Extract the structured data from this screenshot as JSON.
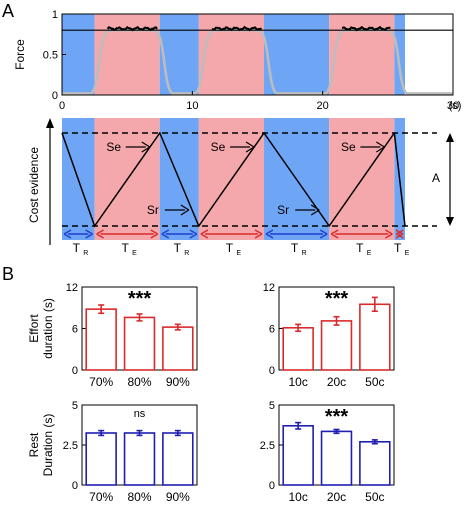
{
  "panel_labels": [
    "A",
    "B"
  ],
  "colors": {
    "rest": "#6ea6f5",
    "effort": "#f5a8ac",
    "effort_bar": "#d92b2b",
    "rest_bar": "#1f1fb0",
    "trace_gray": "#bdbdbd"
  },
  "chart_data": [
    {
      "id": "force",
      "type": "line",
      "ylabel": "Force",
      "xlabel": "(s)",
      "xlim": [
        0,
        30
      ],
      "ylim": [
        0,
        1
      ],
      "xticks": [
        "0",
        "10",
        "20",
        "30"
      ],
      "yticks": [
        "0",
        "0.5",
        "1"
      ],
      "threshold": 0.8,
      "phases": [
        {
          "kind": "rest",
          "start": 0,
          "end": 2.5
        },
        {
          "kind": "effort",
          "start": 2.5,
          "end": 7.5
        },
        {
          "kind": "rest",
          "start": 7.5,
          "end": 10.5
        },
        {
          "kind": "effort",
          "start": 10.5,
          "end": 15.5
        },
        {
          "kind": "rest",
          "start": 15.5,
          "end": 20.5
        },
        {
          "kind": "effort",
          "start": 20.5,
          "end": 25.5
        },
        {
          "kind": "rest",
          "start": 25.5,
          "end": 30
        }
      ]
    },
    {
      "id": "cost-evidence",
      "type": "line",
      "ylabel": "Cost evidence",
      "annotations": {
        "se": "Se",
        "sr": "Sr",
        "a": "A"
      },
      "phase_labels": {
        "rest": "T",
        "rest_sub": "R",
        "effort": "T",
        "effort_sub": "E"
      },
      "vertices": [
        {
          "x": 0,
          "y": 1
        },
        {
          "x": 2.5,
          "y": 0
        },
        {
          "x": 7.5,
          "y": 1
        },
        {
          "x": 10.5,
          "y": 0
        },
        {
          "x": 15.5,
          "y": 1
        },
        {
          "x": 20.5,
          "y": 0
        },
        {
          "x": 25.5,
          "y": 1
        }
      ]
    },
    {
      "id": "effort-threshold",
      "type": "bar",
      "ylabel": "Effort\nduration (s)",
      "categories": [
        "70%",
        "80%",
        "90%"
      ],
      "values": [
        8.8,
        7.6,
        6.2
      ],
      "errors": [
        0.6,
        0.5,
        0.4
      ],
      "ylim": [
        0,
        12
      ],
      "yticks": [
        "0",
        "6",
        "12"
      ],
      "significance": "***"
    },
    {
      "id": "effort-cost",
      "type": "bar",
      "categories": [
        "10c",
        "20c",
        "50c"
      ],
      "values": [
        6.1,
        7.1,
        9.5
      ],
      "errors": [
        0.5,
        0.6,
        1.0
      ],
      "ylim": [
        0,
        12
      ],
      "yticks": [
        "0",
        "6",
        "12"
      ],
      "significance": "***"
    },
    {
      "id": "rest-threshold",
      "type": "bar",
      "ylabel": "Rest\nDuration (s)",
      "categories": [
        "70%",
        "80%",
        "90%"
      ],
      "values": [
        3.25,
        3.25,
        3.25
      ],
      "errors": [
        0.15,
        0.15,
        0.15
      ],
      "ylim": [
        0,
        5
      ],
      "yticks": [
        "0",
        "2.5",
        "5"
      ],
      "significance": "ns"
    },
    {
      "id": "rest-cost",
      "type": "bar",
      "categories": [
        "10c",
        "20c",
        "50c"
      ],
      "values": [
        3.7,
        3.35,
        2.7
      ],
      "errors": [
        0.2,
        0.12,
        0.12
      ],
      "ylim": [
        0,
        5
      ],
      "yticks": [
        "0",
        "2.5",
        "5"
      ],
      "significance": "***"
    }
  ]
}
